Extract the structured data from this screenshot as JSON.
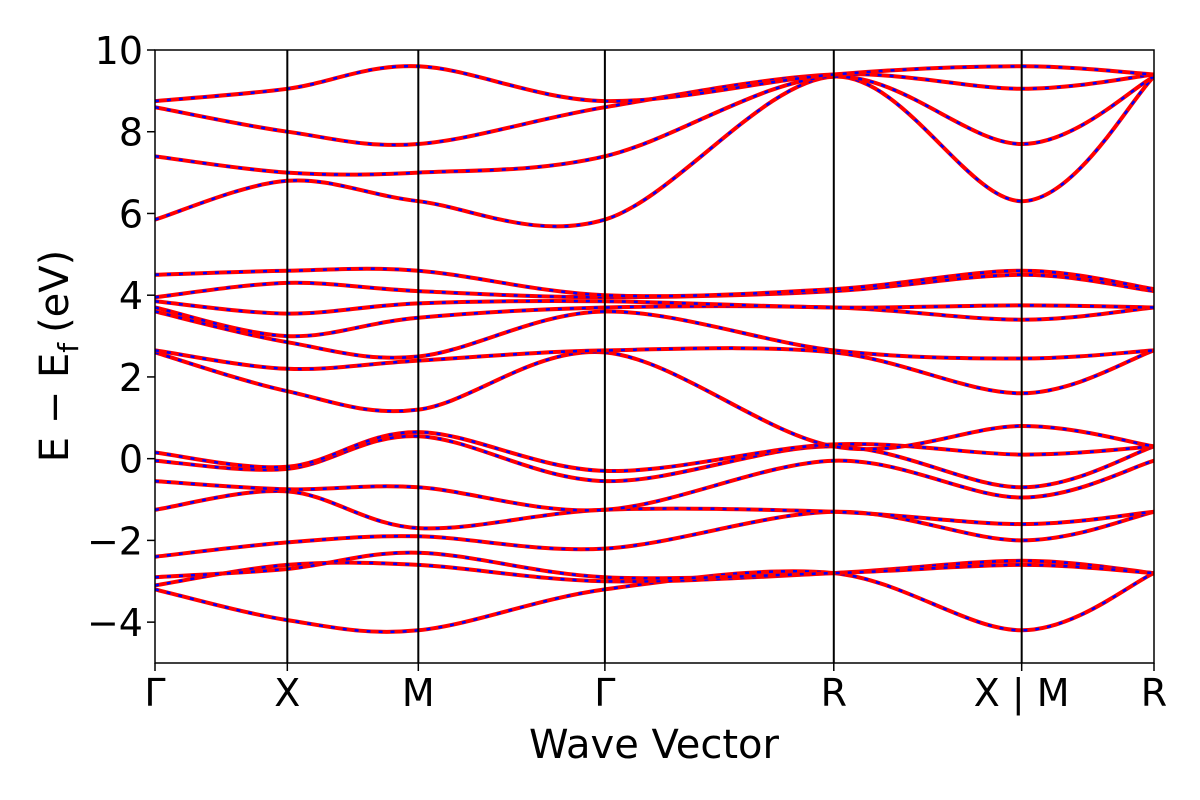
{
  "chart_data": {
    "type": "line",
    "title": "",
    "xlabel": "Wave Vector",
    "ylabel": "E − E",
    "ylabel_subscript": "f",
    "ylabel_unit": "(eV)",
    "ylim": [
      -5,
      10
    ],
    "yticks": [
      -4,
      -2,
      0,
      2,
      4,
      6,
      8,
      10
    ],
    "ytick_labels": [
      "−4",
      "−2",
      "0",
      "2",
      "4",
      "6",
      "8",
      "10"
    ],
    "xlim": [
      0,
      7.55
    ],
    "kpoints": [
      {
        "x": 0.0,
        "label": "Γ"
      },
      {
        "x": 1.0,
        "label": "X"
      },
      {
        "x": 1.99,
        "label": "M"
      },
      {
        "x": 3.4,
        "label": "Γ"
      },
      {
        "x": 5.13,
        "label": "R"
      },
      {
        "x": 6.55,
        "label": "X | M"
      },
      {
        "x": 7.55,
        "label": "R"
      }
    ],
    "colors": {
      "series_a": "#ff0000",
      "series_b": "#0000ff",
      "axis": "#000000"
    },
    "grid": false,
    "series": [
      {
        "x": [
          0,
          1.0,
          1.99,
          3.4,
          5.13,
          6.55,
          7.55
        ],
        "values": [
          -3.2,
          -3.95,
          -4.2,
          -3.2,
          -2.8,
          -4.2,
          -2.8
        ]
      },
      {
        "x": [
          0,
          1.0,
          1.99,
          3.4,
          5.13,
          6.55,
          7.55
        ],
        "values": [
          -3.1,
          -2.6,
          -2.6,
          -3.0,
          -2.8,
          -2.5,
          -2.8
        ]
      },
      {
        "x": [
          0,
          1.0,
          1.99,
          3.4,
          5.13,
          6.55,
          7.55
        ],
        "values": [
          -2.9,
          -2.7,
          -2.3,
          -2.9,
          -2.8,
          -2.6,
          -2.8
        ]
      },
      {
        "x": [
          0,
          1.0,
          1.99,
          3.4,
          5.13,
          6.55,
          7.55
        ],
        "values": [
          -2.4,
          -2.05,
          -1.9,
          -2.2,
          -1.3,
          -2.0,
          -1.3
        ]
      },
      {
        "x": [
          0,
          1.0,
          1.99,
          3.4,
          5.13,
          6.55,
          7.55
        ],
        "values": [
          -1.25,
          -0.8,
          -1.7,
          -1.25,
          -1.3,
          -1.6,
          -1.3
        ]
      },
      {
        "x": [
          0,
          1.0,
          1.99,
          3.4,
          5.13,
          6.55,
          7.55
        ],
        "values": [
          -0.55,
          -0.75,
          -0.7,
          -1.25,
          -0.05,
          -0.95,
          -0.05
        ]
      },
      {
        "x": [
          0,
          1.0,
          1.99,
          3.4,
          5.13,
          6.55,
          7.55
        ],
        "values": [
          -0.05,
          -0.25,
          0.55,
          -0.55,
          0.3,
          -0.7,
          0.3
        ]
      },
      {
        "x": [
          0,
          1.0,
          1.99,
          3.4,
          5.13,
          6.55,
          7.55
        ],
        "values": [
          0.15,
          -0.2,
          0.65,
          -0.3,
          0.35,
          0.1,
          0.3
        ]
      },
      {
        "x": [
          0,
          1.0,
          1.99,
          3.4,
          5.13,
          6.55,
          7.55
        ],
        "values": [
          2.6,
          1.65,
          1.2,
          2.6,
          0.3,
          0.8,
          0.3
        ]
      },
      {
        "x": [
          0,
          1.0,
          1.99,
          3.4,
          5.13,
          6.55,
          7.55
        ],
        "values": [
          2.65,
          2.2,
          2.4,
          2.65,
          2.6,
          1.6,
          2.65
        ]
      },
      {
        "x": [
          0,
          1.0,
          1.99,
          3.4,
          5.13,
          6.55,
          7.55
        ],
        "values": [
          3.6,
          2.85,
          2.5,
          3.6,
          2.65,
          2.45,
          2.65
        ]
      },
      {
        "x": [
          0,
          1.0,
          1.99,
          3.4,
          5.13,
          6.55,
          7.55
        ],
        "values": [
          3.7,
          3.0,
          3.45,
          3.7,
          3.7,
          3.4,
          3.7
        ]
      },
      {
        "x": [
          0,
          1.0,
          1.99,
          3.4,
          5.13,
          6.55,
          7.55
        ],
        "values": [
          3.85,
          3.55,
          3.8,
          3.85,
          3.7,
          3.75,
          3.7
        ]
      },
      {
        "x": [
          0,
          1.0,
          1.99,
          3.4,
          5.13,
          6.55,
          7.55
        ],
        "values": [
          3.95,
          4.3,
          4.1,
          3.95,
          4.1,
          4.5,
          4.1
        ]
      },
      {
        "x": [
          0,
          1.0,
          1.99,
          3.4,
          5.13,
          6.55,
          7.55
        ],
        "values": [
          4.5,
          4.6,
          4.6,
          4.0,
          4.15,
          4.6,
          4.15
        ]
      },
      {
        "x": [
          0,
          1.0,
          1.99,
          3.4,
          5.13,
          6.55,
          7.55
        ],
        "values": [
          5.85,
          6.8,
          6.3,
          5.85,
          9.35,
          6.3,
          9.35
        ]
      },
      {
        "x": [
          0,
          1.0,
          1.99,
          3.4,
          5.13,
          6.55,
          7.55
        ],
        "values": [
          7.4,
          7.0,
          7.0,
          7.4,
          9.35,
          7.7,
          9.35
        ]
      },
      {
        "x": [
          0,
          1.0,
          1.99,
          3.4,
          5.13,
          6.55,
          7.55
        ],
        "values": [
          8.6,
          8.0,
          7.7,
          8.6,
          9.4,
          9.05,
          9.4
        ]
      },
      {
        "x": [
          0,
          1.0,
          1.99,
          3.4,
          5.13,
          6.55,
          7.55
        ],
        "values": [
          8.75,
          9.05,
          9.6,
          8.75,
          9.4,
          9.6,
          9.4
        ]
      }
    ]
  }
}
